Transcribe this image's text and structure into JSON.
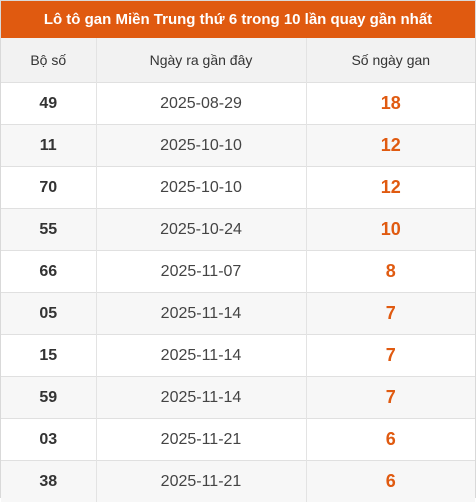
{
  "title": "Lô tô gan Miền Trung thứ 6 trong 10 lần quay gần nhất",
  "columns": {
    "number": "Bộ số",
    "last_date": "Ngày ra gần đây",
    "days": "Số ngày gan"
  },
  "colors": {
    "accent": "#e05a10",
    "header_bg": "#f2f2f2",
    "row_alt_bg": "#f7f7f7"
  },
  "rows": [
    {
      "number": "49",
      "last_date": "2025-08-29",
      "days": "18"
    },
    {
      "number": "11",
      "last_date": "2025-10-10",
      "days": "12"
    },
    {
      "number": "70",
      "last_date": "2025-10-10",
      "days": "12"
    },
    {
      "number": "55",
      "last_date": "2025-10-24",
      "days": "10"
    },
    {
      "number": "66",
      "last_date": "2025-11-07",
      "days": "8"
    },
    {
      "number": "05",
      "last_date": "2025-11-14",
      "days": "7"
    },
    {
      "number": "15",
      "last_date": "2025-11-14",
      "days": "7"
    },
    {
      "number": "59",
      "last_date": "2025-11-14",
      "days": "7"
    },
    {
      "number": "03",
      "last_date": "2025-11-21",
      "days": "6"
    },
    {
      "number": "38",
      "last_date": "2025-11-21",
      "days": "6"
    }
  ]
}
